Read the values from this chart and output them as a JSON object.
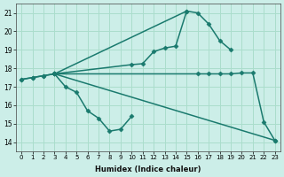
{
  "xlabel": "Humidex (Indice chaleur)",
  "xlim": [
    -0.5,
    23.5
  ],
  "ylim": [
    13.5,
    21.5
  ],
  "xticks": [
    0,
    1,
    2,
    3,
    4,
    5,
    6,
    7,
    8,
    9,
    10,
    11,
    12,
    13,
    14,
    15,
    16,
    17,
    18,
    19,
    20,
    21,
    22,
    23
  ],
  "yticks": [
    14,
    15,
    16,
    17,
    18,
    19,
    20,
    21
  ],
  "bg_color": "#cceee8",
  "grid_color": "#aaddcc",
  "line_color": "#1a7a6e",
  "line_width": 1.1,
  "marker": "D",
  "marker_size": 2.5,
  "line1_x": [
    0,
    1,
    2,
    3,
    4,
    5,
    6,
    7,
    8,
    9,
    10
  ],
  "line1_y": [
    17.4,
    17.5,
    17.6,
    17.7,
    17.0,
    16.7,
    15.7,
    15.3,
    14.6,
    14.7,
    15.4
  ],
  "line2_x": [
    3,
    10,
    11,
    12,
    13,
    14,
    15,
    16,
    17,
    18,
    19
  ],
  "line2_y": [
    17.7,
    18.2,
    18.25,
    18.9,
    19.1,
    19.2,
    21.1,
    21.0,
    20.4,
    19.5,
    19.0
  ],
  "line3_x": [
    0,
    1,
    2,
    3,
    16,
    17,
    18,
    19,
    20,
    21,
    22,
    23
  ],
  "line3_y": [
    17.4,
    17.5,
    17.6,
    17.7,
    17.7,
    17.7,
    17.7,
    17.7,
    17.75,
    17.75,
    15.1,
    14.1
  ],
  "line4_x": [
    3,
    15
  ],
  "line4_y": [
    17.7,
    21.1
  ],
  "line5_x": [
    3,
    23
  ],
  "line5_y": [
    17.7,
    14.1
  ]
}
